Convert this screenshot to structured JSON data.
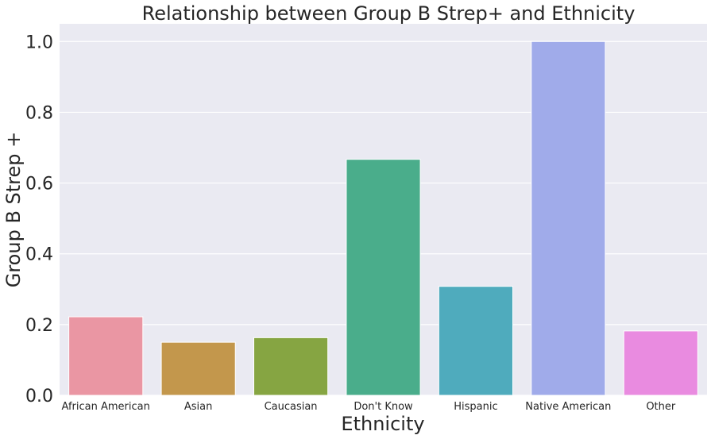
{
  "chart_data": {
    "type": "bar",
    "title": "Relationship between Group B Strep+ and Ethnicity",
    "xlabel": "Ethnicity",
    "ylabel": "Group B Strep +",
    "categories": [
      "African American",
      "Asian",
      "Caucasian",
      "Don't Know",
      "Hispanic",
      "Native American",
      "Other"
    ],
    "values": [
      0.222,
      0.15,
      0.163,
      0.667,
      0.308,
      1.0,
      0.182
    ],
    "colors": [
      "#ea96a3",
      "#c3974c",
      "#86a542",
      "#4aad8b",
      "#4fabbd",
      "#a0abea",
      "#e98be0"
    ],
    "ylim": [
      0,
      1.05
    ],
    "yticks": [
      "0.0",
      "0.2",
      "0.4",
      "0.6",
      "0.8",
      "1.0"
    ],
    "grid": true,
    "background": "#eaeaf2"
  }
}
